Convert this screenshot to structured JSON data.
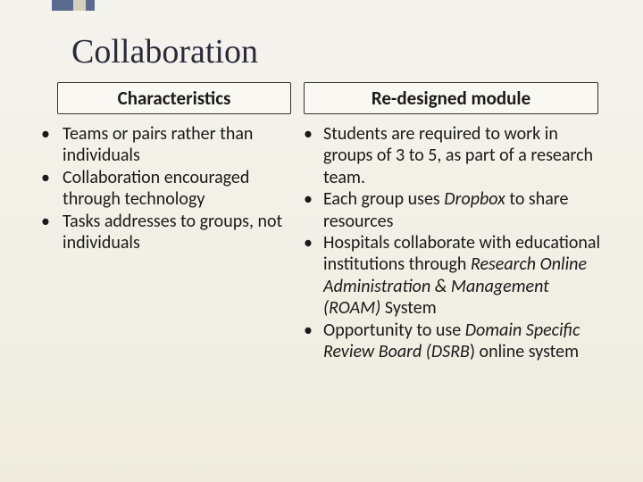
{
  "title": "Collaboration",
  "deco_bars": [
    {
      "width": 24,
      "color": "#5b6b8f"
    },
    {
      "width": 14,
      "color": "#d4d0c0"
    },
    {
      "width": 10,
      "color": "#5b6b8f"
    }
  ],
  "left": {
    "header": "Characteristics",
    "items": [
      {
        "html": "Teams or pairs rather than individuals"
      },
      {
        "html": "Collaboration encouraged through technology"
      },
      {
        "html": "Tasks addresses to groups, not individuals"
      }
    ]
  },
  "right": {
    "header": "Re-designed module",
    "items": [
      {
        "html": "Students are required to work in groups of 3 to 5, as part of a research team."
      },
      {
        "html": "Each group uses <em class=\"italic\">Dropbox</em> to share resources"
      },
      {
        "html": "Hospitals collaborate with educational institutions through <em class=\"italic\">Research Online Administration &amp; Management (ROAM)</em> System"
      },
      {
        "html": "Opportunity to use <em class=\"italic\">Domain Specific Review Board (DSRB</em>) online system"
      }
    ]
  },
  "background_gradient": [
    "#f5f3ed",
    "#efecdf"
  ],
  "body_font": "Calibri",
  "title_font": "Book Antiqua",
  "title_fontsize": 38,
  "header_fontsize": 21,
  "body_fontsize": 20,
  "text_color": "#1a1a1a"
}
